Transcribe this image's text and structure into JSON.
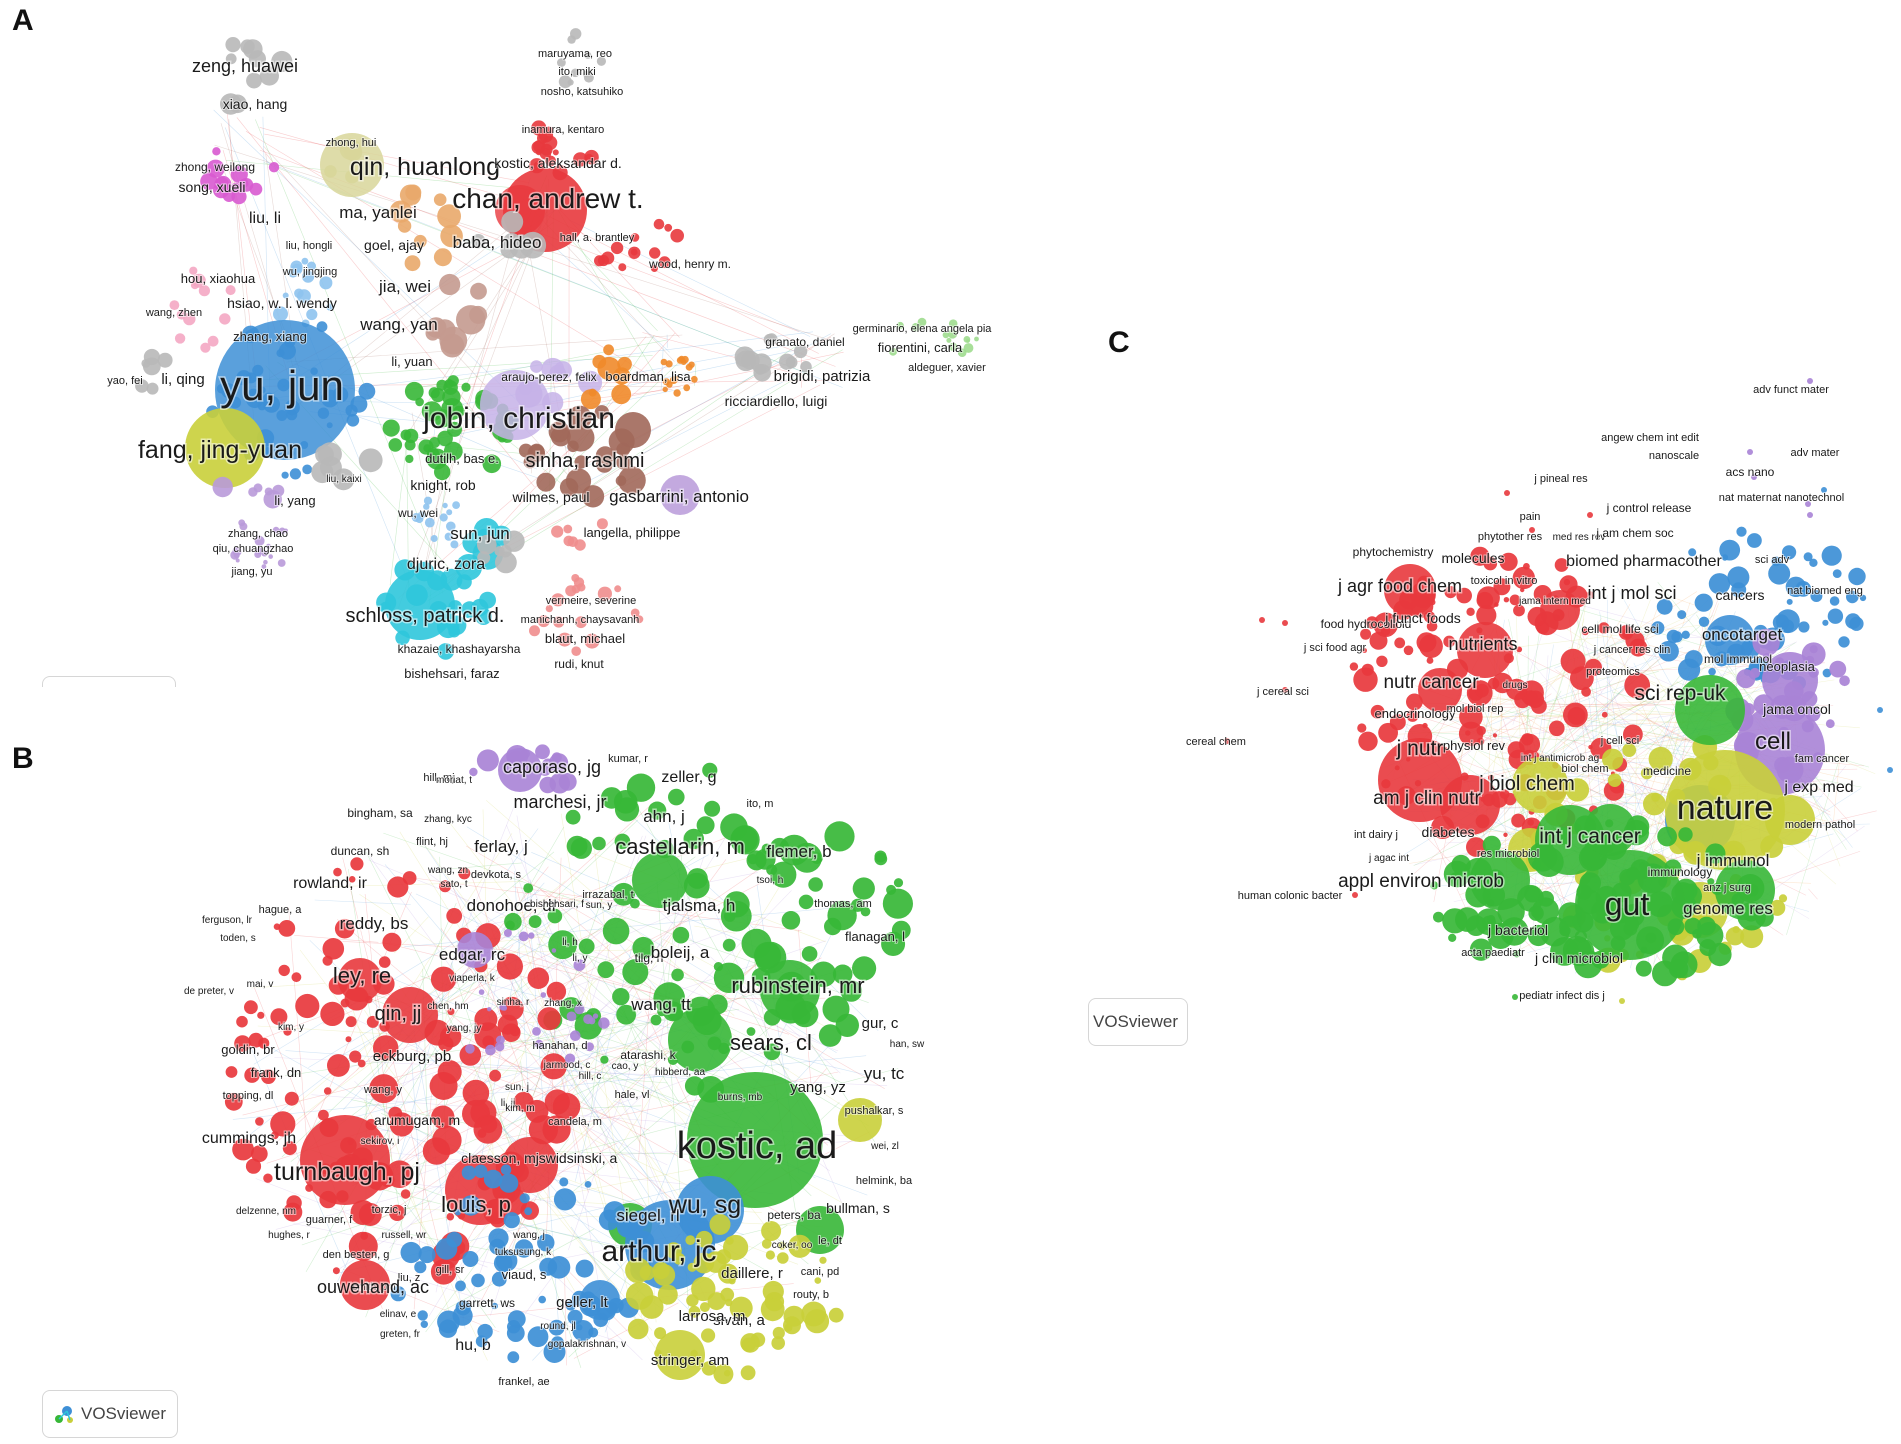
{
  "panels": [
    {
      "letter": "A",
      "badge": "",
      "colors": {
        "red": "#e8383d",
        "blue": "#3d8fd6",
        "green": "#37b737",
        "yellow": "#c9cf3a",
        "purple": "#a983d6",
        "cyan": "#2fc6dc",
        "orange": "#f08a2a",
        "brown": "#a1685a",
        "pink": "#e97ca9",
        "magenta": "#d85ad0",
        "gray": "#b8b8b8",
        "khaki": "#d8d69a",
        "peach": "#e9a96a",
        "salmon": "#ef8d8d",
        "lightgreen": "#9fdc8e",
        "lavender": "#c6b2e8",
        "skyblue": "#8ec3ee",
        "lightpink": "#f4a7c3",
        "tan": "#c49a8f",
        "lightpurple": "#b99ad9"
      },
      "labels": [
        "zeng, huawei",
        "xiao, hang",
        "maruyama, reo",
        "ito, miki",
        "nosho, katsuhiko",
        "inamura, kentaro",
        "zhong, hui",
        "qin, huanlong",
        "zhong, weilong",
        "song, xueli",
        "kostic, aleksandar d.",
        "chan, andrew t.",
        "liu, li",
        "ma, yanlei",
        "baba, hideo",
        "hall, a. brantley",
        "wood, henry m.",
        "liu, hongli",
        "goel, ajay",
        "wu, jingjing",
        "hou, xiaohua",
        "jia, wei",
        "hsiao, w. l. wendy",
        "wang, zhen",
        "wang, yan",
        "zhang, xiang",
        "germinario, elena angela pia",
        "granato, daniel",
        "fiorentini, carla",
        "li, yuan",
        "aldeguer, xavier",
        "brigidi, patrizia",
        "yao, fei",
        "li, qing",
        "yu, jun",
        "araujo-perez, felix",
        "boardman, lisa",
        "ricciardiello, luigi",
        "jobin, christian",
        "fang, jing-yuan",
        "sinha, rashmi",
        "dutilh, bas e.",
        "liu, kaixi",
        "knight, rob",
        "wilmes, paul",
        "gasbarrini, antonio",
        "li, yang",
        "wu, wei",
        "zhang, chao",
        "sun, jun",
        "langella, philippe",
        "qiu, chuangzhao",
        "jiang, yu",
        "djuric, zora",
        "vermeire, severine",
        "manichanh, chaysavanh",
        "schloss, patrick d.",
        "khazaie, khashayarsha",
        "blaut, michael",
        "rudi, knut",
        "bishehsari, faraz"
      ]
    },
    {
      "letter": "B",
      "badge": "VOSviewer",
      "labels": [
        "kumar, r",
        "caporaso, jg",
        "zeller, g",
        "hill, mj",
        "moriat, t",
        "marchesi, jr",
        "ito, m",
        "bingham, sa",
        "zhang, kyc",
        "ahn, j",
        "flint, hj",
        "ferlay, j",
        "castellarin, m",
        "duncan, sh",
        "devkota, s",
        "flemer, b",
        "wang, zn",
        "tsoi, h",
        "rowland, ir",
        "sato, t",
        "donohoe, dr",
        "irrazabal, t",
        "tjalsma, h",
        "thomas, am",
        "hague, a",
        "ferguson, lr",
        "reddy, bs",
        "bishehsari, f",
        "sun, y",
        "flanagan, l",
        "toden, s",
        "li, h",
        "tilg, h",
        "boleij, a",
        "ley, re",
        "edgar, rc",
        "mai, v",
        "li, y",
        "viaperla, k",
        "de preter, v",
        "zhang, x",
        "rubinstein, mr",
        "qin, jj",
        "chen, hm",
        "sinha, r",
        "wang, tt",
        "kim, y",
        "yang, jy",
        "gur, c",
        "hanahan, d",
        "sears, cl",
        "han, sw",
        "goldin, br",
        "eckburg, pb",
        "atarashi, k",
        "frank, dn",
        "jarmood, c",
        "hill, c",
        "cao, y",
        "hibberd, aa",
        "yang, yz",
        "yu, tc",
        "wang, y",
        "sun, j",
        "topping, dl",
        "hale, vl",
        "burns, mb",
        "li, jj",
        "pushalkar, s",
        "arumugam, m",
        "kim, m",
        "candela, m",
        "cummings, jh",
        "sekirov, i",
        "wei, zl",
        "claesson, mj",
        "swidsinski, a",
        "kostic, ad",
        "turnbaugh, pj",
        "helmink, ba",
        "louis, p",
        "delzenne, nm",
        "torzic, j",
        "bullman, s",
        "guarner, f",
        "siegel, rl",
        "wu, sg",
        "peters, ba",
        "hughes, r",
        "russell, wr",
        "wang, j",
        "le, dt",
        "den besten, g",
        "tuksusung, k",
        "coker, oo",
        "arthur, jc",
        "gill, sr",
        "liu, z",
        "smith, pm",
        "viaud, s",
        "daillere, r",
        "cani, pd",
        "ouwehand, ac",
        "elinav, e",
        "garrett, ws",
        "geller, lt",
        "routy, b",
        "sivan, a",
        "larrosa, m",
        "greten, fr",
        "round, jl",
        "hu, b",
        "gopalakrishnan, v",
        "stringer, am",
        "frankel, ae"
      ]
    },
    {
      "letter": "C",
      "badge": "VOSviewer",
      "labels": [
        "adv funct mater",
        "angew chem int edit",
        "adv mater",
        "nanoscale",
        "acs nano",
        "j pineal res",
        "nat mater",
        "nat nanotechnol",
        "j control release",
        "pain",
        "phytother res",
        "med res rev",
        "j am chem soc",
        "phytochemistry",
        "molecules",
        "biomed pharmacother",
        "sci adv",
        "toxicol in vitro",
        "j agr food chem",
        "int j mol sci",
        "cancers",
        "nat biomed eng",
        "jama intern med",
        "food hydrocolloid",
        "j funct foods",
        "cell mol life sci",
        "oncotarget",
        "j sci food agr",
        "nutrients",
        "j cancer res clin",
        "mol immunol",
        "neoplasia",
        "proteomics",
        "j cereal sci",
        "nutr cancer",
        "drugs",
        "sci rep-uk",
        "endocrinology",
        "jama oncol",
        "mol biol rep",
        "cereal chem",
        "j cell sci",
        "cell",
        "j nutr",
        "physiol rev",
        "int j antimicrob ag",
        "fam cancer",
        "biol chem",
        "medicine",
        "j biol chem",
        "j exp med",
        "am j clin nutr",
        "nature",
        "modern pathol",
        "int dairy j",
        "diabetes",
        "int j cancer",
        "j agac int",
        "res microbiol",
        "j immunol",
        "immunology",
        "appl environ microb",
        "anz j surg",
        "human colonic bacter",
        "gut",
        "genome res",
        "j bacteriol",
        "acta paediatr",
        "j clin microbiol",
        "pediatr infect dis j"
      ]
    }
  ]
}
